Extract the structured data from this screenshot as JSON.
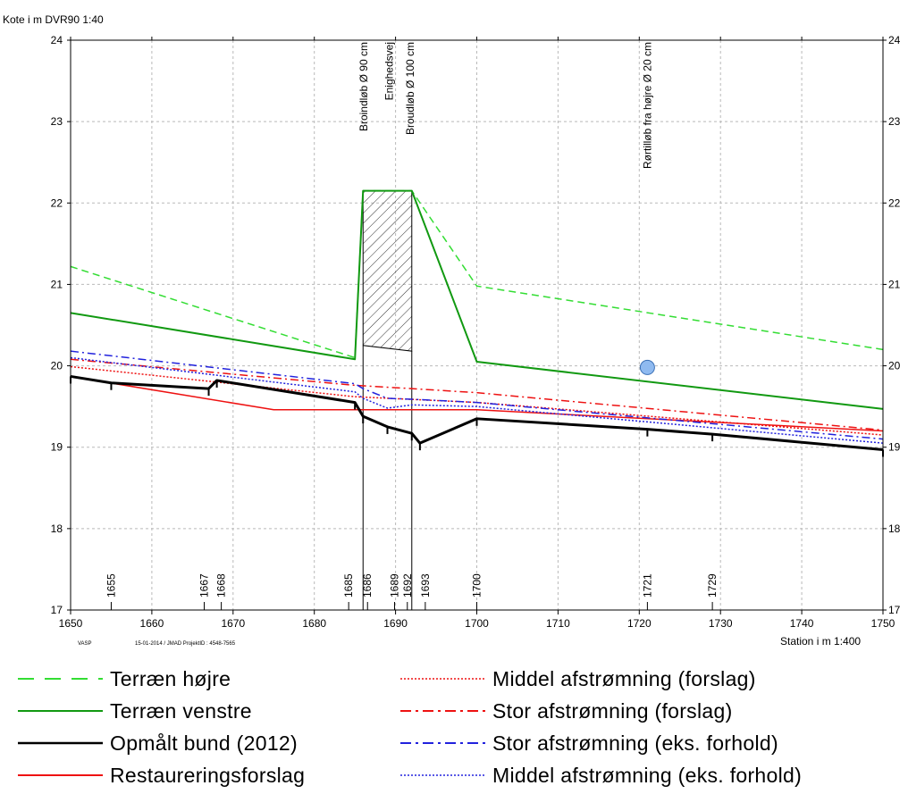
{
  "chart_data": {
    "type": "line",
    "ylabel": "Kote i m DVR90 1:40",
    "xlabel": "Station i m  1:400",
    "xlim": [
      1650,
      1750
    ],
    "ylim": [
      17,
      24
    ],
    "x_ticks": [
      1650,
      1660,
      1670,
      1680,
      1690,
      1700,
      1710,
      1720,
      1730,
      1740,
      1750
    ],
    "y_ticks": [
      17,
      18,
      19,
      20,
      21,
      22,
      23,
      24
    ],
    "grid": true,
    "footer": {
      "left": "VASP",
      "middle": "15-01-2014 / JMAD   ProjektID : 4548-7565"
    },
    "stations": [
      "1655",
      "1667",
      "1668",
      "1685",
      "1686",
      "1689",
      "1692",
      "1693",
      "1700",
      "1721",
      "1729"
    ],
    "annotations": [
      {
        "x": 1686,
        "text": "Broindløb Ø 90 cm"
      },
      {
        "x": 1689,
        "text": "Enighedsvej"
      },
      {
        "x": 1692,
        "text": "Broudløb Ø 100 cm"
      },
      {
        "x": 1721,
        "text": "Rørtilløb fra højre Ø 20 cm"
      }
    ],
    "bridge": {
      "x": [
        1686,
        1692
      ],
      "top": [
        22.15,
        22.15
      ],
      "bottom": [
        20.25,
        20.18
      ]
    },
    "pipe_marker": {
      "x": 1721,
      "y": 19.98
    },
    "series": [
      {
        "name": "Terræn højre",
        "color": "#33dd33",
        "style": "dashed",
        "x": [
          1650,
          1685,
          1686,
          1692,
          1700,
          1750
        ],
        "values": [
          21.22,
          20.1,
          22.15,
          22.15,
          20.98,
          20.2
        ]
      },
      {
        "name": "Terræn venstre",
        "color": "#119911",
        "style": "solid",
        "x": [
          1650,
          1685,
          1686,
          1692,
          1700,
          1750
        ],
        "values": [
          20.65,
          20.08,
          22.15,
          22.15,
          20.05,
          19.47
        ]
      },
      {
        "name": "Opmålt bund (2012)",
        "color": "#000000",
        "style": "solid",
        "x": [
          1650,
          1655,
          1667,
          1668,
          1685,
          1686,
          1689,
          1692,
          1693,
          1700,
          1721,
          1729,
          1750
        ],
        "values": [
          19.87,
          19.79,
          19.72,
          19.82,
          19.55,
          19.38,
          19.25,
          19.17,
          19.05,
          19.35,
          19.22,
          19.16,
          18.97
        ]
      },
      {
        "name": "Restaureringsforslag",
        "color": "#ee1111",
        "style": "solid",
        "x": [
          1650,
          1675,
          1685,
          1700,
          1750
        ],
        "values": [
          19.87,
          19.46,
          19.46,
          19.46,
          19.2
        ]
      },
      {
        "name": "Middel afstrømning (forslag)",
        "color": "#ee1111",
        "style": "dotted",
        "x": [
          1650,
          1685,
          1700,
          1750
        ],
        "values": [
          19.99,
          19.62,
          19.55,
          19.15
        ]
      },
      {
        "name": "Stor afstrømning (forslag)",
        "color": "#ee1111",
        "style": "dashdot",
        "x": [
          1650,
          1685,
          1692,
          1700,
          1750
        ],
        "values": [
          20.08,
          19.76,
          19.72,
          19.67,
          19.21
        ]
      },
      {
        "name": "Stor afstrømning (eks. forhold)",
        "color": "#2222dd",
        "style": "dashdot",
        "x": [
          1650,
          1685,
          1686,
          1689,
          1692,
          1700,
          1750
        ],
        "values": [
          20.18,
          19.78,
          19.72,
          19.6,
          19.59,
          19.55,
          19.1
        ]
      },
      {
        "name": "Middel afstrømning (eks. forhold)",
        "color": "#2222dd",
        "style": "dotted",
        "x": [
          1650,
          1685,
          1686,
          1689,
          1692,
          1700,
          1750
        ],
        "values": [
          20.1,
          19.68,
          19.6,
          19.48,
          19.52,
          19.5,
          19.05
        ]
      }
    ]
  }
}
